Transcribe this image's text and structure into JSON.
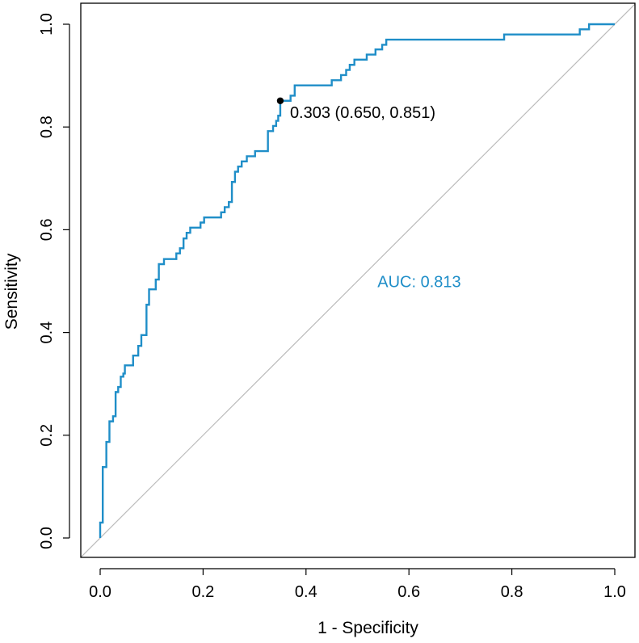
{
  "chart_data": {
    "type": "line",
    "title": "",
    "xlabel": "1 - Specificity",
    "ylabel": "Sensitivity",
    "xlim": [
      0,
      1
    ],
    "ylim": [
      0,
      1
    ],
    "xticks": [
      "0.0",
      "0.2",
      "0.4",
      "0.6",
      "0.8",
      "1.0"
    ],
    "xtick_values": [
      0,
      0.2,
      0.4,
      0.6,
      0.8,
      1.0
    ],
    "yticks": [
      "0.0",
      "0.2",
      "0.4",
      "0.6",
      "0.8",
      "1.0"
    ],
    "ytick_values": [
      0,
      0.2,
      0.4,
      0.6,
      0.8,
      1.0
    ],
    "grid": false,
    "colors": {
      "roc": "#1f8ec8",
      "diagonal": "#bbbbbb",
      "text": "#000000",
      "auc": "#1f8ec8"
    },
    "auc_label": "AUC: 0.813",
    "auc_label_pos": {
      "x": 0.62,
      "y": 0.488
    },
    "best_threshold": {
      "x": 0.35,
      "y": 0.851,
      "label": "0.303 (0.650, 0.851)"
    },
    "series": [
      {
        "name": "ROC",
        "points": [
          [
            0.0,
            0.0
          ],
          [
            0.0,
            0.03
          ],
          [
            0.005,
            0.03
          ],
          [
            0.005,
            0.138
          ],
          [
            0.012,
            0.138
          ],
          [
            0.012,
            0.187
          ],
          [
            0.018,
            0.187
          ],
          [
            0.018,
            0.227
          ],
          [
            0.025,
            0.227
          ],
          [
            0.025,
            0.237
          ],
          [
            0.03,
            0.237
          ],
          [
            0.03,
            0.284
          ],
          [
            0.035,
            0.284
          ],
          [
            0.035,
            0.294
          ],
          [
            0.04,
            0.294
          ],
          [
            0.04,
            0.314
          ],
          [
            0.045,
            0.314
          ],
          [
            0.045,
            0.32
          ],
          [
            0.048,
            0.32
          ],
          [
            0.048,
            0.336
          ],
          [
            0.064,
            0.336
          ],
          [
            0.064,
            0.355
          ],
          [
            0.074,
            0.355
          ],
          [
            0.074,
            0.374
          ],
          [
            0.08,
            0.374
          ],
          [
            0.08,
            0.395
          ],
          [
            0.09,
            0.395
          ],
          [
            0.09,
            0.454
          ],
          [
            0.095,
            0.454
          ],
          [
            0.095,
            0.484
          ],
          [
            0.108,
            0.484
          ],
          [
            0.108,
            0.503
          ],
          [
            0.114,
            0.503
          ],
          [
            0.114,
            0.533
          ],
          [
            0.124,
            0.533
          ],
          [
            0.124,
            0.543
          ],
          [
            0.148,
            0.543
          ],
          [
            0.148,
            0.554
          ],
          [
            0.155,
            0.554
          ],
          [
            0.155,
            0.564
          ],
          [
            0.162,
            0.564
          ],
          [
            0.162,
            0.583
          ],
          [
            0.168,
            0.583
          ],
          [
            0.168,
            0.594
          ],
          [
            0.175,
            0.594
          ],
          [
            0.175,
            0.604
          ],
          [
            0.195,
            0.604
          ],
          [
            0.195,
            0.614
          ],
          [
            0.202,
            0.614
          ],
          [
            0.202,
            0.624
          ],
          [
            0.235,
            0.624
          ],
          [
            0.235,
            0.634
          ],
          [
            0.242,
            0.634
          ],
          [
            0.242,
            0.644
          ],
          [
            0.25,
            0.644
          ],
          [
            0.25,
            0.654
          ],
          [
            0.256,
            0.654
          ],
          [
            0.256,
            0.693
          ],
          [
            0.262,
            0.693
          ],
          [
            0.262,
            0.713
          ],
          [
            0.268,
            0.713
          ],
          [
            0.268,
            0.723
          ],
          [
            0.275,
            0.723
          ],
          [
            0.275,
            0.733
          ],
          [
            0.285,
            0.733
          ],
          [
            0.285,
            0.743
          ],
          [
            0.301,
            0.743
          ],
          [
            0.301,
            0.753
          ],
          [
            0.326,
            0.753
          ],
          [
            0.326,
            0.792
          ],
          [
            0.336,
            0.792
          ],
          [
            0.336,
            0.802
          ],
          [
            0.342,
            0.802
          ],
          [
            0.342,
            0.812
          ],
          [
            0.346,
            0.812
          ],
          [
            0.346,
            0.822
          ],
          [
            0.35,
            0.822
          ],
          [
            0.35,
            0.851
          ],
          [
            0.37,
            0.851
          ],
          [
            0.37,
            0.861
          ],
          [
            0.378,
            0.861
          ],
          [
            0.378,
            0.881
          ],
          [
            0.45,
            0.881
          ],
          [
            0.45,
            0.891
          ],
          [
            0.468,
            0.891
          ],
          [
            0.468,
            0.901
          ],
          [
            0.478,
            0.901
          ],
          [
            0.478,
            0.911
          ],
          [
            0.485,
            0.911
          ],
          [
            0.485,
            0.921
          ],
          [
            0.494,
            0.921
          ],
          [
            0.494,
            0.931
          ],
          [
            0.518,
            0.931
          ],
          [
            0.518,
            0.941
          ],
          [
            0.535,
            0.941
          ],
          [
            0.535,
            0.951
          ],
          [
            0.548,
            0.951
          ],
          [
            0.548,
            0.96
          ],
          [
            0.556,
            0.96
          ],
          [
            0.556,
            0.97
          ],
          [
            0.785,
            0.97
          ],
          [
            0.785,
            0.98
          ],
          [
            0.932,
            0.98
          ],
          [
            0.932,
            0.99
          ],
          [
            0.95,
            0.99
          ],
          [
            0.95,
            1.0
          ],
          [
            1.0,
            1.0
          ]
        ]
      }
    ]
  }
}
